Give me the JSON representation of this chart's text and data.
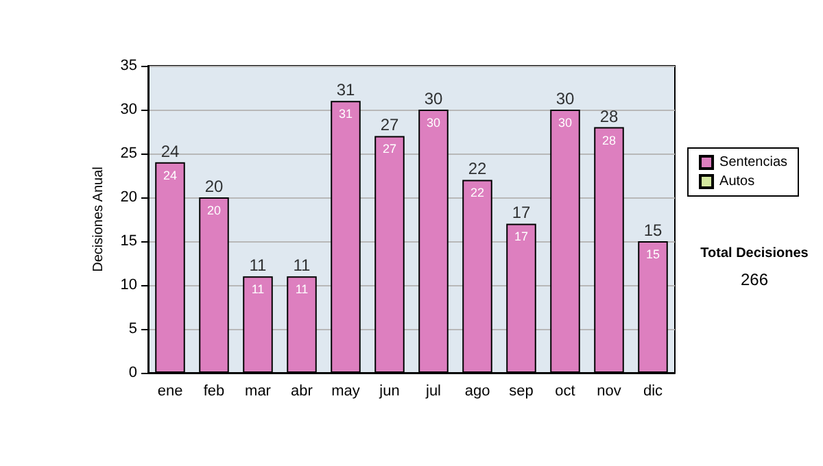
{
  "chart_data": {
    "type": "bar",
    "ylabel": "Decisiones Anual",
    "categories": [
      "ene",
      "feb",
      "mar",
      "abr",
      "may",
      "jun",
      "jul",
      "ago",
      "sep",
      "oct",
      "nov",
      "dic"
    ],
    "series": [
      {
        "name": "Sentencias",
        "color": "#dd7fbf",
        "values": [
          24,
          20,
          11,
          11,
          31,
          27,
          30,
          22,
          17,
          30,
          28,
          15
        ]
      },
      {
        "name": "Autos",
        "color": "#d4e8a0",
        "values": [
          null,
          null,
          null,
          null,
          null,
          null,
          null,
          null,
          null,
          null,
          null,
          null
        ]
      }
    ],
    "stacked": true,
    "data_labels": true,
    "totals": [
      "24",
      "20",
      "11",
      "11",
      "31",
      "27",
      "30",
      "22",
      "17",
      "30",
      "28",
      "15"
    ],
    "ylim": [
      0,
      35
    ],
    "yticks": [
      0,
      5,
      10,
      15,
      20,
      25,
      30,
      35
    ],
    "grid": "y",
    "legend": "right",
    "annotations": [
      "Total Decisiones",
      "266"
    ]
  }
}
